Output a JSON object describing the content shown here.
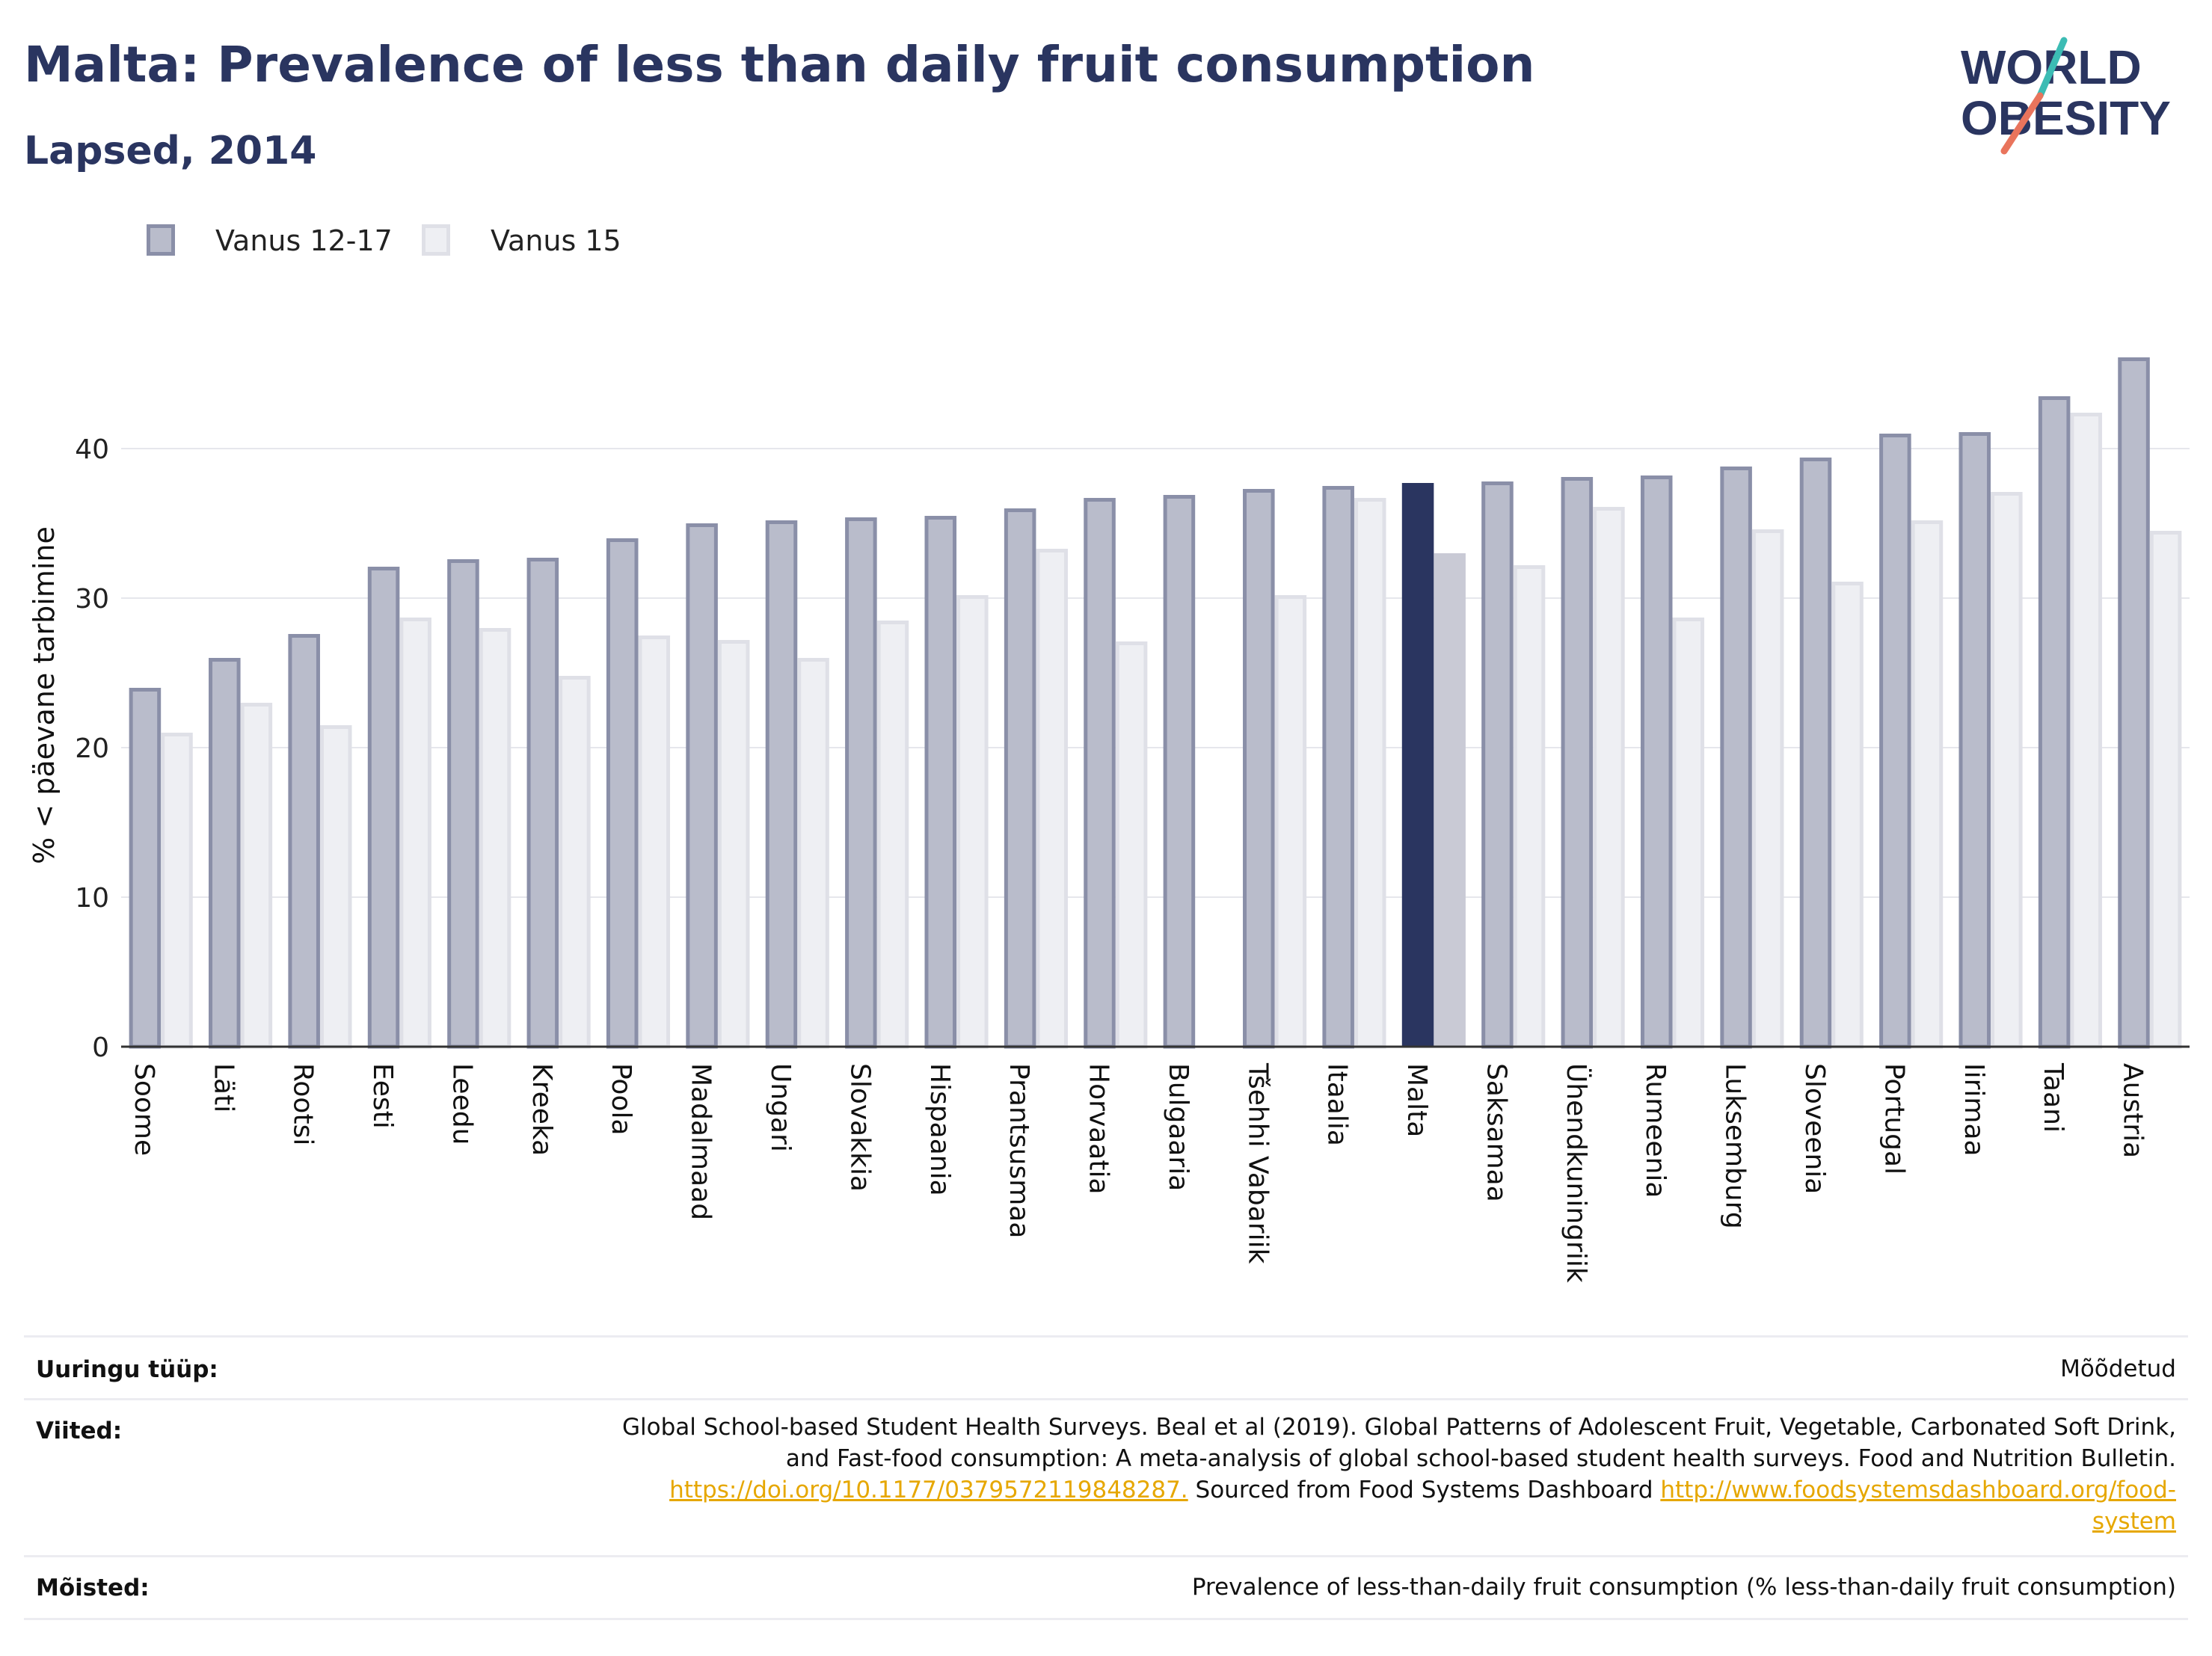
{
  "header": {
    "title": "Malta: Prevalence of less than daily fruit consumption",
    "subtitle": "Lapsed, 2014"
  },
  "logo": {
    "line1": "WORLD",
    "line2": "OBESITY",
    "icon": "world-obesity-logo"
  },
  "colors": {
    "series1_fill": "#b9bccb",
    "series1_border": "#8a8fa8",
    "series2_fill": "#eeeff3",
    "series2_border": "#dfe0e7",
    "highlight1": "#2a3560",
    "highlight2": "#c9cad5",
    "title": "#2a3560",
    "link": "#e6a700"
  },
  "chart_data": {
    "type": "bar",
    "ylabel": "% < päevane tarbimine",
    "ylim": [
      0,
      48
    ],
    "yticks": [
      0,
      10,
      20,
      30,
      40
    ],
    "grid": true,
    "legend_position": "top-left",
    "highlight": "Malta",
    "categories": [
      "Soome",
      "Läti",
      "Rootsi",
      "Eesti",
      "Leedu",
      "Kreeka",
      "Poola",
      "Madalmaad",
      "Ungari",
      "Slovakkia",
      "Hispaania",
      "Prantsusmaa",
      "Horvaatia",
      "Bulgaaria",
      "Tšehhi Vabariik",
      "Itaalia",
      "Malta",
      "Saksamaa",
      "Ühendkuningriik",
      "Rumeenia",
      "Luksemburg",
      "Sloveenia",
      "Portugal",
      "Iirimaa",
      "Taani",
      "Austria"
    ],
    "series": [
      {
        "name": "Vanus 12-17",
        "values": [
          24.0,
          26.0,
          27.6,
          32.1,
          32.6,
          32.7,
          34.0,
          35.0,
          35.2,
          35.4,
          35.5,
          36.0,
          36.7,
          36.9,
          37.3,
          37.5,
          37.7,
          37.8,
          38.1,
          38.2,
          38.8,
          39.4,
          41.0,
          41.1,
          43.5,
          46.1
        ]
      },
      {
        "name": "Vanus 15",
        "values": [
          21.0,
          23.0,
          21.5,
          28.7,
          28.0,
          24.8,
          27.5,
          27.2,
          26.0,
          28.5,
          30.2,
          33.3,
          27.1,
          null,
          30.2,
          36.7,
          33.0,
          32.2,
          36.1,
          28.7,
          34.6,
          31.1,
          35.2,
          37.1,
          42.4,
          34.5
        ]
      }
    ]
  },
  "footer": {
    "rows": [
      {
        "label": "Uuringu tüüp:",
        "value": "Mõõdetud"
      },
      {
        "label": "Viited:",
        "line1": "Global School-based Student Health Surveys. Beal et al (2019). Global Patterns of Adolescent Fruit, Vegetable, Carbonated Soft Drink,",
        "line2": "and Fast-food consumption: A meta-analysis of global school-based student health surveys. Food and Nutrition Bulletin.",
        "link1": "https://doi.org/10.1177/0379572119848287.",
        "mid": " Sourced from Food Systems Dashboard ",
        "link2a": "http://www.foodsystemsdashboard.org/food-",
        "link2b": "system"
      },
      {
        "label": "Mõisted:",
        "value": "Prevalence of less-than-daily fruit consumption (% less-than-daily fruit consumption)"
      }
    ]
  }
}
